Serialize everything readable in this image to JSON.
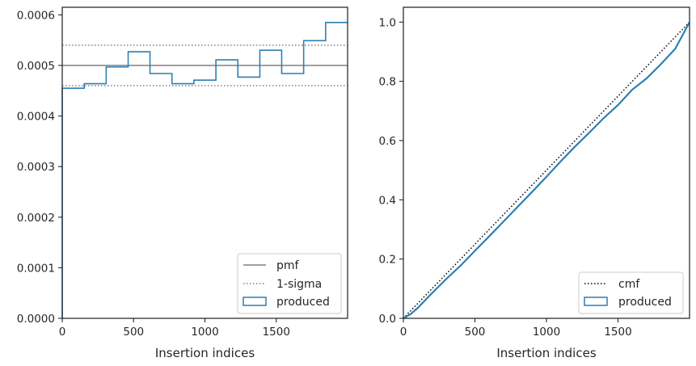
{
  "colors": {
    "blue": "#2f7fb4",
    "gray": "#808080",
    "black": "#000000",
    "axis": "#262626"
  },
  "chart_data": [
    {
      "type": "line",
      "subtype": "histogram-step",
      "xlabel": "Insertion indices",
      "xlim": [
        0,
        2000
      ],
      "ylim": [
        0,
        0.000615
      ],
      "xticks": [
        0,
        500,
        1000,
        1500
      ],
      "yticks": [
        0,
        0.0001,
        0.0002,
        0.0003,
        0.0004,
        0.0005,
        0.0006
      ],
      "ytick_labels": [
        "0.0000",
        "0.0001",
        "0.0002",
        "0.0003",
        "0.0004",
        "0.0005",
        "0.0006"
      ],
      "xtick_labels": [
        "0",
        "500",
        "1000",
        "1500"
      ],
      "grid": false,
      "legend_position": "lower-right",
      "series": [
        {
          "name": "pmf",
          "style": "solid",
          "color": "#808080",
          "x": [
            0,
            2000
          ],
          "y": [
            0.0005,
            0.0005
          ]
        },
        {
          "name": "1-sigma",
          "style": "dotted",
          "color": "#808080",
          "x": [
            0,
            2000
          ],
          "y": [
            0.00054,
            0.00054
          ]
        },
        {
          "name": "",
          "style": "dotted",
          "color": "#808080",
          "x": [
            0,
            2000
          ],
          "y": [
            0.00046,
            0.00046
          ]
        },
        {
          "name": "produced",
          "style": "step",
          "color": "#2f7fb4",
          "bin_edges": [
            0,
            154,
            308,
            462,
            615,
            769,
            923,
            1077,
            1231,
            1385,
            1538,
            1692,
            1846,
            2000
          ],
          "values": [
            0.000455,
            0.000464,
            0.000497,
            0.000527,
            0.000484,
            0.000464,
            0.000471,
            0.000511,
            0.000477,
            0.00053,
            0.000484,
            0.000549,
            0.000585
          ]
        }
      ]
    },
    {
      "type": "line",
      "xlabel": "Insertion indices",
      "xlim": [
        0,
        2000
      ],
      "ylim": [
        0,
        1.05
      ],
      "xticks": [
        0,
        500,
        1000,
        1500
      ],
      "yticks": [
        0,
        0.2,
        0.4,
        0.6,
        0.8,
        1.0
      ],
      "ytick_labels": [
        "0.0",
        "0.2",
        "0.4",
        "0.6",
        "0.8",
        "1.0"
      ],
      "xtick_labels": [
        "0",
        "500",
        "1000",
        "1500"
      ],
      "grid": false,
      "legend_position": "lower-right",
      "series": [
        {
          "name": "cmf",
          "style": "dotted",
          "color": "#000000",
          "x": [
            0,
            2000
          ],
          "y": [
            0,
            1.0
          ]
        },
        {
          "name": "produced",
          "style": "solid",
          "color": "#2f7fb4",
          "x": [
            0,
            50,
            100,
            150,
            200,
            300,
            400,
            500,
            600,
            700,
            800,
            900,
            1000,
            1100,
            1200,
            1300,
            1400,
            1500,
            1600,
            1700,
            1800,
            1900,
            2000
          ],
          "y": [
            0,
            0.014,
            0.035,
            0.06,
            0.085,
            0.133,
            0.178,
            0.228,
            0.277,
            0.327,
            0.377,
            0.427,
            0.478,
            0.53,
            0.58,
            0.627,
            0.676,
            0.72,
            0.772,
            0.81,
            0.858,
            0.91,
            1.0
          ]
        }
      ]
    }
  ]
}
